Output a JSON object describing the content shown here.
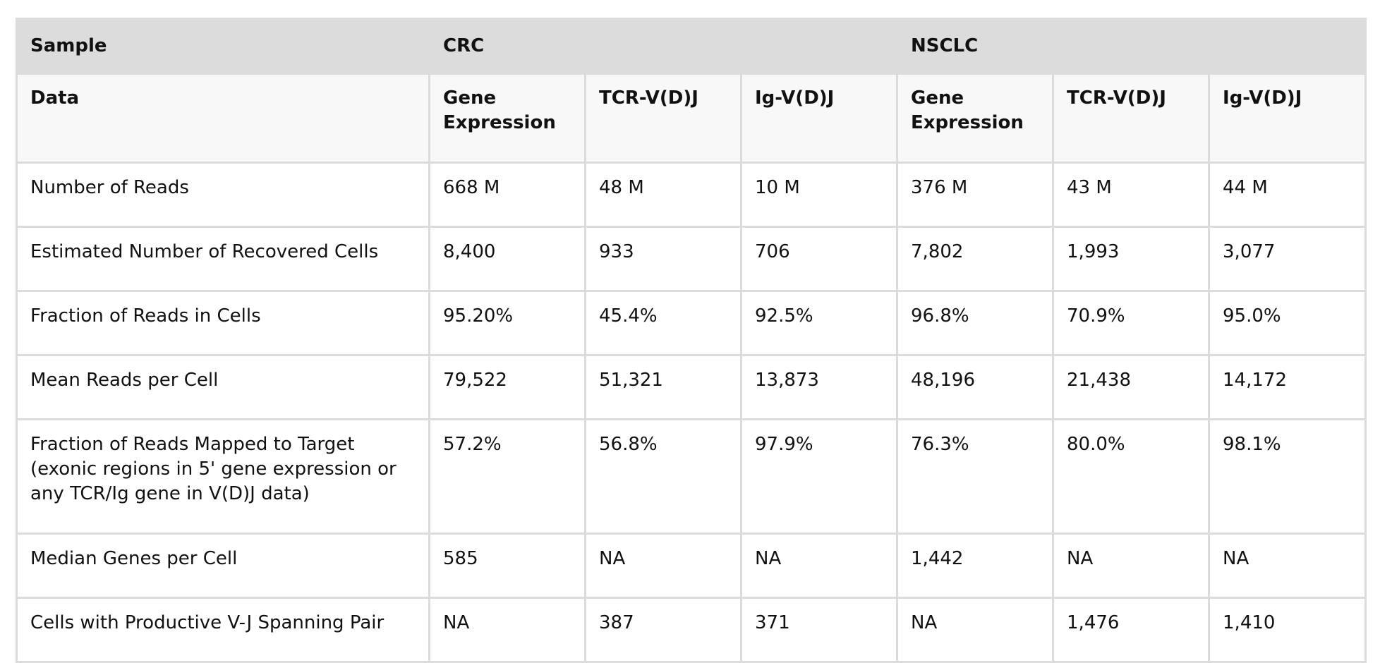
{
  "header": {
    "sample_label": "Sample",
    "groups": [
      "CRC",
      "NSCLC"
    ]
  },
  "subheader": {
    "data_label": "Data",
    "columns": [
      "Gene Expression",
      "TCR-V(D)J",
      "Ig-V(D)J",
      "Gene Expression",
      "TCR-V(D)J",
      "Ig-V(D)J"
    ]
  },
  "rows": [
    {
      "label": "Number of Reads",
      "values": [
        "668 M",
        "48 M",
        "10 M",
        "376 M",
        "43 M",
        "44 M"
      ]
    },
    {
      "label": "Estimated Number of Recovered Cells",
      "values": [
        "8,400",
        "933",
        "706",
        "7,802",
        "1,993",
        "3,077"
      ]
    },
    {
      "label": "Fraction of Reads in Cells",
      "values": [
        "95.20%",
        "45.4%",
        "92.5%",
        "96.8%",
        "70.9%",
        "95.0%"
      ]
    },
    {
      "label": "Mean Reads per Cell",
      "values": [
        "79,522",
        "51,321",
        "13,873",
        "48,196",
        "21,438",
        "14,172"
      ]
    },
    {
      "label": "Fraction of Reads Mapped to Target (exonic regions in 5' gene expression or any TCR/Ig gene in V(D)J data)",
      "values": [
        "57.2%",
        "56.8%",
        "97.9%",
        "76.3%",
        "80.0%",
        "98.1%"
      ]
    },
    {
      "label": "Median Genes per Cell",
      "values": [
        "585",
        "NA",
        "NA",
        "1,442",
        "NA",
        "NA"
      ]
    },
    {
      "label": "Cells with Productive V-J Spanning Pair",
      "values": [
        "NA",
        "387",
        "371",
        "NA",
        "1,476",
        "1,410"
      ]
    }
  ]
}
